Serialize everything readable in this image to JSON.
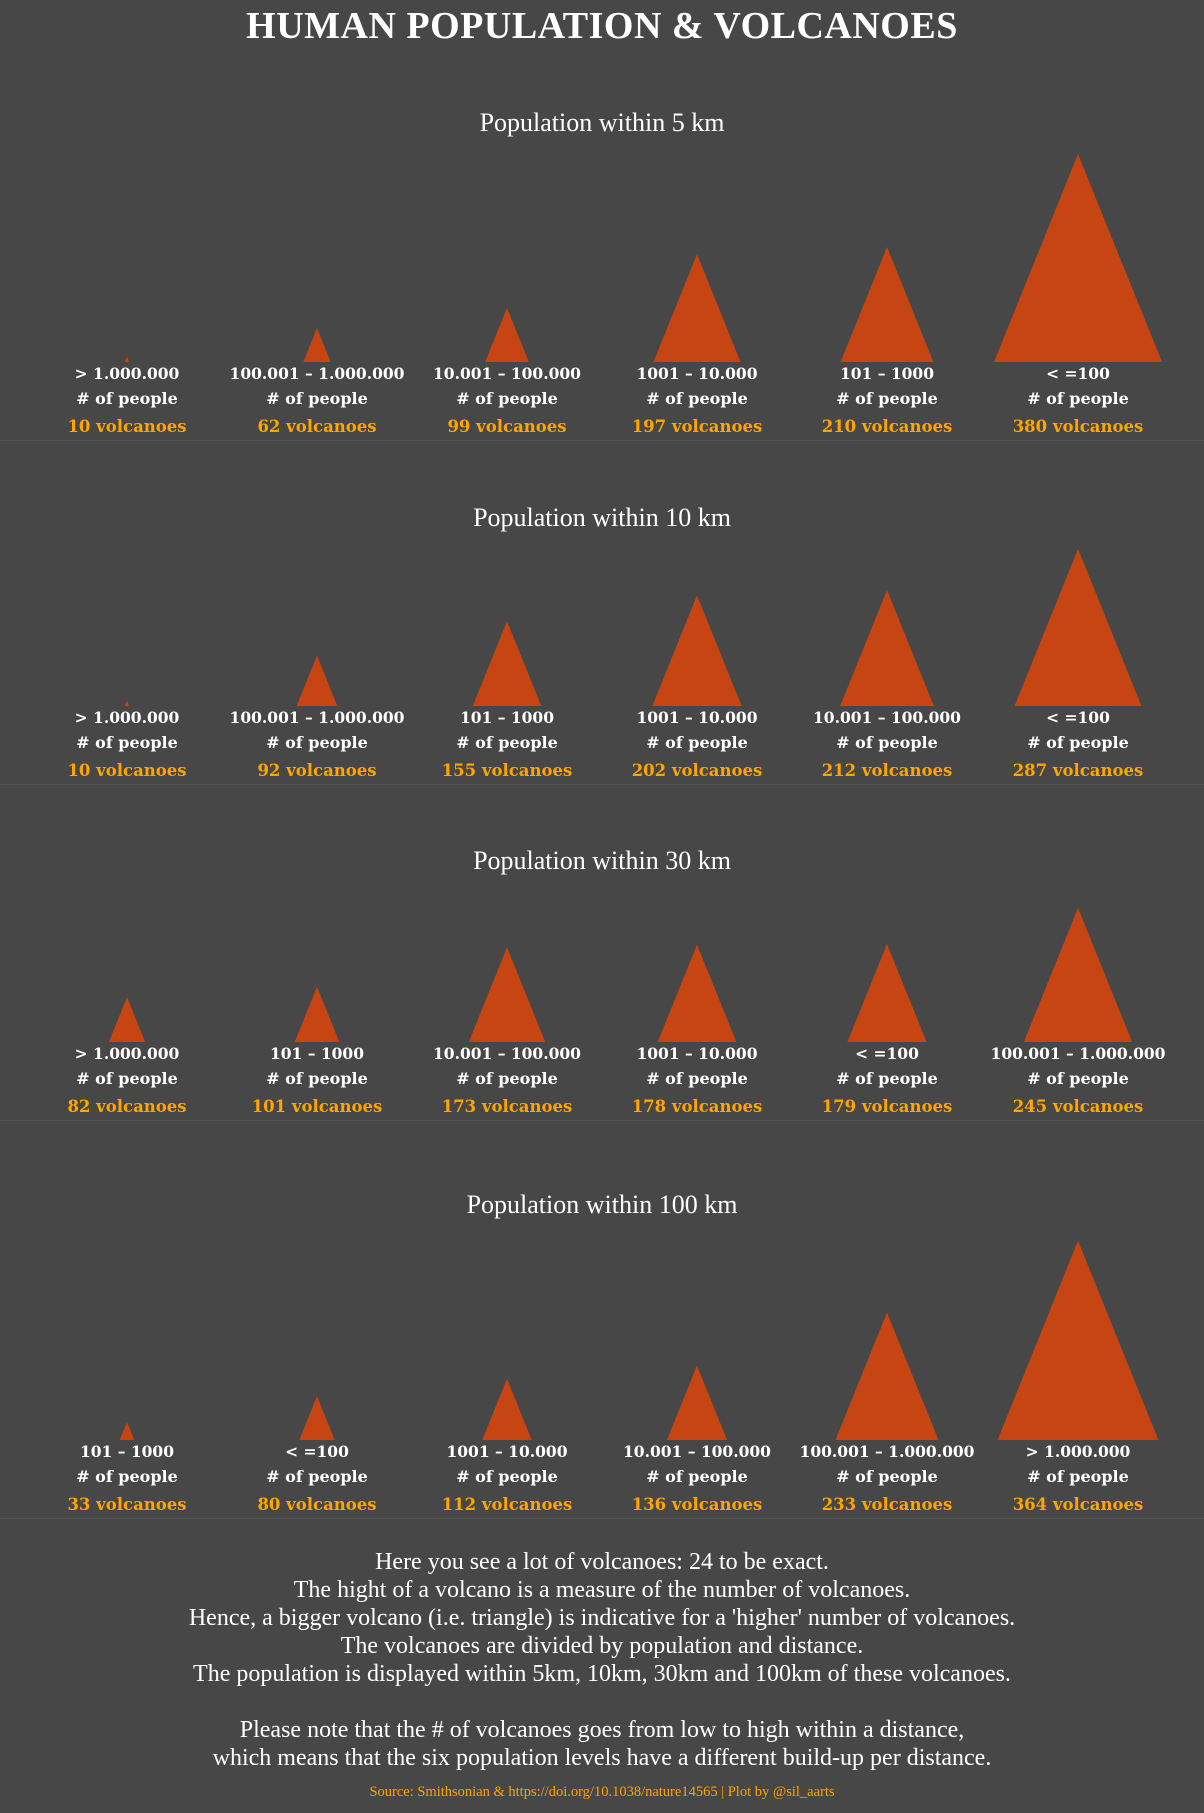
{
  "title": "HUMAN POPULATION & VOLCANOES",
  "colors": {
    "background": "#474747",
    "volcano": "#c64513",
    "count_text": "#ffa500",
    "text": "#ffffff"
  },
  "people_label": "# of people",
  "chart_data": [
    {
      "type": "bar",
      "mark": "triangle",
      "title": "Population within 5 km",
      "categories": [
        "> 1.000.000",
        "100.001 – 1.000.000",
        "10.001 – 100.000",
        "1001 – 10.000",
        "101 – 1000",
        "< =100"
      ],
      "values": [
        10,
        62,
        99,
        197,
        210,
        380
      ],
      "labels": [
        "10 volcanoes",
        "62 volcanoes",
        "99 volcanoes",
        "197 volcanoes",
        "210 volcanoes",
        "380 volcanoes"
      ]
    },
    {
      "type": "bar",
      "mark": "triangle",
      "title": "Population within 10 km",
      "categories": [
        "> 1.000.000",
        "100.001 – 1.000.000",
        "101 – 1000",
        "1001 – 10.000",
        "10.001 – 100.000",
        "< =100"
      ],
      "values": [
        10,
        92,
        155,
        202,
        212,
        287
      ],
      "labels": [
        "10 volcanoes",
        "92 volcanoes",
        "155 volcanoes",
        "202 volcanoes",
        "212 volcanoes",
        "287 volcanoes"
      ]
    },
    {
      "type": "bar",
      "mark": "triangle",
      "title": "Population within 30 km",
      "categories": [
        "> 1.000.000",
        "101 – 1000",
        "10.001 – 100.000",
        "1001 – 10.000",
        "< =100",
        "100.001 – 1.000.000"
      ],
      "values": [
        82,
        101,
        173,
        178,
        179,
        245
      ],
      "labels": [
        "82 volcanoes",
        "101 volcanoes",
        "173 volcanoes",
        "178 volcanoes",
        "179 volcanoes",
        "245 volcanoes"
      ]
    },
    {
      "type": "bar",
      "mark": "triangle",
      "title": "Population within 100 km",
      "categories": [
        "101 – 1000",
        "< =100",
        "1001 – 10.000",
        "10.001 – 100.000",
        "100.001 – 1.000.000",
        "> 1.000.000"
      ],
      "values": [
        33,
        80,
        112,
        136,
        233,
        364
      ],
      "labels": [
        "33 volcanoes",
        "80 volcanoes",
        "112 volcanoes",
        "136 volcanoes",
        "233 volcanoes",
        "364 volcanoes"
      ]
    }
  ],
  "explanation": {
    "lines": [
      "Here you see a lot of volcanoes: 24 to be exact.",
      "The hight of a volcano is a measure of the number of volcanoes.",
      "Hence, a bigger volcano (i.e. triangle) is indicative for a 'higher' number of volcanoes.",
      "The volcanoes are divided by population and distance.",
      "The population is displayed within 5km, 10km, 30km and 100km of these volcanoes."
    ],
    "note_lines": [
      "Please note that the # of volcanoes goes from low to high within a distance,",
      "which means that the six population levels have a different build-up per distance."
    ]
  },
  "source": "Source: Smithsonian & https://doi.org/10.1038/nature14565 | Plot by @sil_aarts"
}
